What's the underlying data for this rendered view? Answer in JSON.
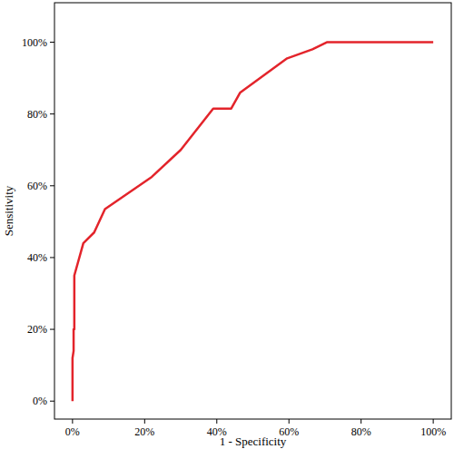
{
  "chart_data": {
    "type": "line",
    "x_label": "1 - Specificity",
    "y_label": "Sensitivity",
    "x": [
      0,
      0,
      0.3,
      0.3,
      0.5,
      0.5,
      3,
      6,
      9,
      22,
      30,
      39,
      44,
      46.5,
      59.5,
      66.5,
      70.5,
      100
    ],
    "values": [
      0,
      12,
      14,
      20,
      20,
      35,
      44,
      47,
      53.5,
      62.5,
      70,
      81.5,
      81.5,
      86,
      95.5,
      98,
      100,
      100
    ],
    "color": "#e3242b",
    "xlim": [
      -5,
      105
    ],
    "ylim": [
      -5,
      111
    ],
    "xticks": [
      {
        "value": 0,
        "label": "0%"
      },
      {
        "value": 20,
        "label": "20%"
      },
      {
        "value": 40,
        "label": "40%"
      },
      {
        "value": 60,
        "label": "60%"
      },
      {
        "value": 80,
        "label": "80%"
      },
      {
        "value": 100,
        "label": "100%"
      }
    ],
    "yticks": [
      {
        "value": 0,
        "label": "0%"
      },
      {
        "value": 20,
        "label": "20%"
      },
      {
        "value": 40,
        "label": "40%"
      },
      {
        "value": 60,
        "label": "60%"
      },
      {
        "value": 80,
        "label": "80%"
      },
      {
        "value": 100,
        "label": "100%"
      }
    ],
    "grid": false
  }
}
